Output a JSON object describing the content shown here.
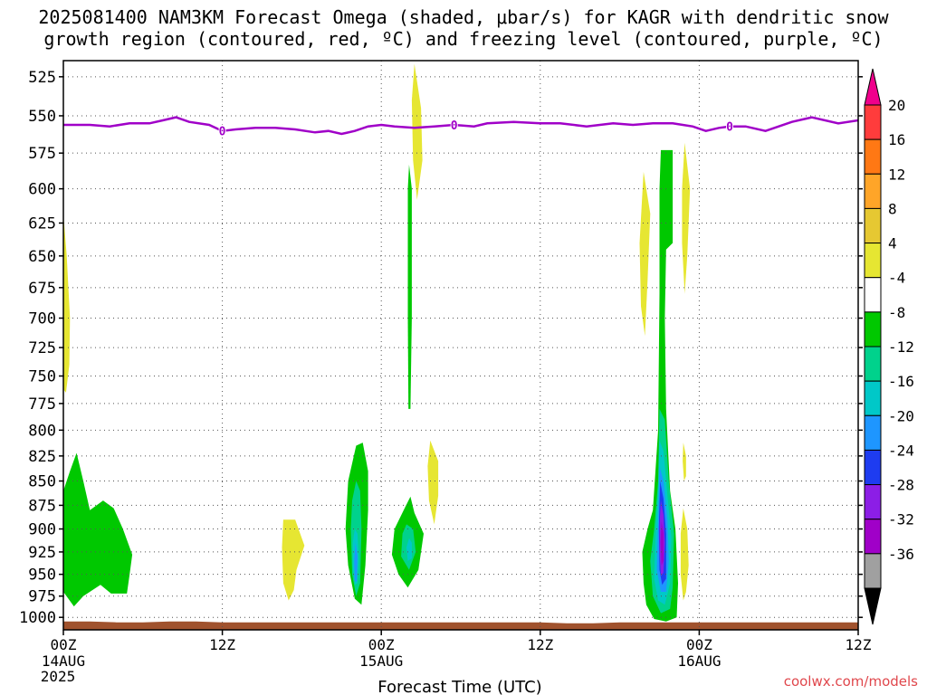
{
  "chart_data": {
    "type": "heatmap",
    "title_line1": "2025081400 NAM3KM Forecast Omega (shaded, μbar/s) for KAGR with dendritic snow",
    "title_line2": "growth region (contoured, red, ºC) and freezing level (contoured, purple, ºC)",
    "xlabel": "Forecast Time (UTC)",
    "x_range_hours": [
      0,
      60
    ],
    "x_ticks": [
      {
        "h": 0,
        "label": "00Z",
        "sub1": "14AUG",
        "sub2": "2025"
      },
      {
        "h": 12,
        "label": "12Z"
      },
      {
        "h": 24,
        "label": "00Z",
        "sub1": "15AUG"
      },
      {
        "h": 36,
        "label": "12Z"
      },
      {
        "h": 48,
        "label": "00Z",
        "sub1": "16AUG"
      },
      {
        "h": 60,
        "label": "12Z"
      }
    ],
    "y_range_hpa": [
      1015,
      515
    ],
    "y_scale": "log",
    "y_ticks": [
      525,
      550,
      575,
      600,
      625,
      650,
      675,
      700,
      725,
      750,
      775,
      800,
      825,
      850,
      875,
      900,
      925,
      950,
      975,
      1000
    ],
    "grid": true,
    "colorbar": {
      "labels": [
        "20",
        "16",
        "12",
        "8",
        "4",
        "-4",
        "-8",
        "-12",
        "-16",
        "-20",
        "-24",
        "-28",
        "-32",
        "-36"
      ],
      "colors": [
        "#f0008c",
        "#ff3c3c",
        "#ff7814",
        "#ffa528",
        "#e6c832",
        "#e6e632",
        "#ffffff",
        "#00c800",
        "#00d28c",
        "#00c8c8",
        "#1e96ff",
        "#1e3cf0",
        "#8c1ee6",
        "#a000c8",
        "#a0a0a0",
        "#000000"
      ],
      "level_map": {
        "neg4": "#00c800",
        "neg8": "#00d28c",
        "neg12": "#00c8c8",
        "neg16": "#1e96ff",
        "neg20": "#1e3cf0",
        "neg24": "#8c1ee6",
        "neg28": "#a000c8",
        "pos4": "#e6e632"
      }
    },
    "freezing_level": {
      "color": "#a000c8",
      "contour_label": "0",
      "label_hours": [
        12.0,
        29.5,
        50.3
      ],
      "hours": [
        0,
        2,
        3.5,
        5,
        6.5,
        7.5,
        8.5,
        9.5,
        11,
        12,
        13,
        14.5,
        16,
        17.5,
        19,
        20,
        21,
        22,
        23,
        24,
        25,
        26.5,
        28,
        29.5,
        31,
        32,
        34,
        36,
        37.5,
        39.5,
        41.5,
        43,
        44.5,
        46,
        47.5,
        48.5,
        49.5,
        50.3,
        51.5,
        53,
        55,
        56.5,
        58.5,
        60
      ],
      "pressure": [
        556,
        556,
        557,
        555,
        555,
        553,
        551,
        554,
        556,
        560,
        559,
        558,
        558,
        559,
        561,
        560,
        562,
        560,
        557,
        556,
        557,
        558,
        557,
        556,
        557,
        555,
        554,
        555,
        555,
        557,
        555,
        556,
        555,
        555,
        557,
        560,
        558,
        557,
        557,
        560,
        554,
        551,
        555,
        553
      ]
    },
    "omega_regions": [
      {
        "level": "pos4",
        "pts": [
          [
            0,
            618
          ],
          [
            0.25,
            650
          ],
          [
            0.5,
            700
          ],
          [
            0.45,
            740
          ],
          [
            0.2,
            765
          ],
          [
            0,
            762
          ]
        ]
      },
      {
        "level": "neg4",
        "pts": [
          [
            0,
            860
          ],
          [
            0.5,
            840
          ],
          [
            1.0,
            822
          ],
          [
            1.5,
            850
          ],
          [
            2.0,
            880
          ],
          [
            3.0,
            870
          ],
          [
            3.8,
            878
          ],
          [
            4.5,
            900
          ],
          [
            5.2,
            928
          ],
          [
            5.0,
            950
          ],
          [
            4.8,
            972
          ],
          [
            3.6,
            972
          ],
          [
            2.8,
            962
          ],
          [
            1.5,
            975
          ],
          [
            0.8,
            987
          ],
          [
            0,
            970
          ]
        ]
      },
      {
        "level": "pos4",
        "pts": [
          [
            16.6,
            890
          ],
          [
            17.5,
            890
          ],
          [
            18.2,
            918
          ],
          [
            17.6,
            945
          ],
          [
            17.4,
            968
          ],
          [
            17.0,
            980
          ],
          [
            16.6,
            960
          ],
          [
            16.5,
            920
          ]
        ]
      },
      {
        "level": "neg4",
        "pts": [
          [
            22.1,
            815
          ],
          [
            22.6,
            812
          ],
          [
            23.0,
            840
          ],
          [
            23.0,
            880
          ],
          [
            22.8,
            940
          ],
          [
            22.5,
            985
          ],
          [
            22.0,
            978
          ],
          [
            21.5,
            940
          ],
          [
            21.3,
            900
          ],
          [
            21.5,
            850
          ]
        ]
      },
      {
        "level": "neg8",
        "pts": [
          [
            22.1,
            850
          ],
          [
            22.4,
            860
          ],
          [
            22.5,
            900
          ],
          [
            22.4,
            960
          ],
          [
            22.1,
            975
          ],
          [
            21.8,
            950
          ],
          [
            21.7,
            900
          ],
          [
            21.8,
            870
          ]
        ]
      },
      {
        "level": "neg12",
        "pts": [
          [
            22.0,
            900
          ],
          [
            22.2,
            905
          ],
          [
            22.3,
            935
          ],
          [
            22.2,
            960
          ],
          [
            22.0,
            962
          ],
          [
            21.85,
            940
          ],
          [
            21.85,
            915
          ]
        ]
      },
      {
        "level": "neg16",
        "pts": [
          [
            22.05,
            915
          ],
          [
            22.2,
            930
          ],
          [
            22.15,
            958
          ],
          [
            22.0,
            958
          ],
          [
            21.95,
            935
          ]
        ]
      },
      {
        "level": "neg4",
        "pts": [
          [
            25.8,
            877
          ],
          [
            26.2,
            866
          ],
          [
            26.5,
            883
          ],
          [
            27.2,
            905
          ],
          [
            26.8,
            945
          ],
          [
            26.0,
            965
          ],
          [
            25.3,
            950
          ],
          [
            24.8,
            928
          ],
          [
            25.0,
            900
          ]
        ]
      },
      {
        "level": "neg8",
        "pts": [
          [
            25.9,
            895
          ],
          [
            26.4,
            900
          ],
          [
            26.6,
            925
          ],
          [
            26.1,
            945
          ],
          [
            25.5,
            930
          ],
          [
            25.6,
            905
          ]
        ]
      },
      {
        "level": "neg12",
        "pts": [
          [
            26.1,
            910
          ],
          [
            26.3,
            915
          ],
          [
            26.3,
            932
          ],
          [
            26.0,
            935
          ],
          [
            25.9,
            920
          ]
        ]
      },
      {
        "level": "pos4",
        "pts": [
          [
            26.5,
            517
          ],
          [
            27.0,
            545
          ],
          [
            27.1,
            580
          ],
          [
            26.7,
            608
          ],
          [
            26.4,
            580
          ],
          [
            26.3,
            540
          ]
        ]
      },
      {
        "level": "neg4",
        "pts": [
          [
            26.1,
            583
          ],
          [
            26.3,
            600
          ],
          [
            26.3,
            700
          ],
          [
            26.2,
            780
          ],
          [
            26.05,
            780
          ],
          [
            26.0,
            700
          ],
          [
            26.0,
            600
          ]
        ]
      },
      {
        "level": "pos4",
        "pts": [
          [
            27.7,
            810
          ],
          [
            28.3,
            830
          ],
          [
            28.3,
            865
          ],
          [
            28.0,
            895
          ],
          [
            27.6,
            870
          ],
          [
            27.5,
            835
          ]
        ]
      },
      {
        "level": "pos4",
        "pts": [
          [
            43.8,
            588
          ],
          [
            44.3,
            618
          ],
          [
            44.1,
            670
          ],
          [
            43.9,
            715
          ],
          [
            43.6,
            690
          ],
          [
            43.5,
            640
          ]
        ]
      },
      {
        "level": "neg4",
        "pts": [
          [
            45.1,
            573
          ],
          [
            46.0,
            573
          ],
          [
            46.0,
            640
          ],
          [
            45.5,
            645
          ],
          [
            45.4,
            700
          ],
          [
            45.5,
            780
          ],
          [
            45.8,
            860
          ],
          [
            46.2,
            900
          ],
          [
            46.4,
            960
          ],
          [
            46.3,
            1000
          ],
          [
            45.5,
            1005
          ],
          [
            44.6,
            1002
          ],
          [
            44.0,
            985
          ],
          [
            43.8,
            960
          ],
          [
            43.7,
            925
          ],
          [
            44.1,
            900
          ],
          [
            44.5,
            880
          ],
          [
            44.9,
            800
          ],
          [
            45.0,
            680
          ],
          [
            45.0,
            600
          ]
        ]
      },
      {
        "level": "neg8",
        "pts": [
          [
            45.0,
            780
          ],
          [
            45.4,
            790
          ],
          [
            45.7,
            850
          ],
          [
            46.1,
            905
          ],
          [
            46.0,
            965
          ],
          [
            45.8,
            990
          ],
          [
            45.1,
            995
          ],
          [
            44.5,
            975
          ],
          [
            44.3,
            935
          ],
          [
            44.6,
            900
          ],
          [
            44.9,
            850
          ]
        ]
      },
      {
        "level": "neg12",
        "pts": [
          [
            45.0,
            810
          ],
          [
            45.3,
            820
          ],
          [
            45.6,
            865
          ],
          [
            45.9,
            910
          ],
          [
            45.8,
            960
          ],
          [
            45.4,
            985
          ],
          [
            44.9,
            980
          ],
          [
            44.6,
            955
          ],
          [
            44.7,
            905
          ],
          [
            44.9,
            860
          ]
        ]
      },
      {
        "level": "neg16",
        "pts": [
          [
            45.0,
            835
          ],
          [
            45.3,
            850
          ],
          [
            45.6,
            890
          ],
          [
            45.7,
            935
          ],
          [
            45.5,
            970
          ],
          [
            45.1,
            970
          ],
          [
            44.8,
            945
          ],
          [
            44.9,
            890
          ]
        ]
      },
      {
        "level": "neg20",
        "pts": [
          [
            45.05,
            850
          ],
          [
            45.3,
            868
          ],
          [
            45.5,
            905
          ],
          [
            45.5,
            955
          ],
          [
            45.2,
            962
          ],
          [
            45.0,
            945
          ],
          [
            44.95,
            900
          ]
        ]
      },
      {
        "level": "neg24",
        "pts": [
          [
            45.1,
            870
          ],
          [
            45.3,
            885
          ],
          [
            45.4,
            915
          ],
          [
            45.3,
            948
          ],
          [
            45.1,
            952
          ],
          [
            45.0,
            925
          ],
          [
            45.0,
            895
          ]
        ]
      },
      {
        "level": "neg28",
        "pts": [
          [
            45.15,
            892
          ],
          [
            45.3,
            905
          ],
          [
            45.3,
            935
          ],
          [
            45.15,
            940
          ],
          [
            45.08,
            915
          ]
        ]
      },
      {
        "level": "pos4",
        "pts": [
          [
            46.9,
            568
          ],
          [
            47.3,
            600
          ],
          [
            47.1,
            650
          ],
          [
            46.9,
            680
          ],
          [
            46.7,
            640
          ],
          [
            46.7,
            600
          ]
        ]
      },
      {
        "level": "pos4",
        "pts": [
          [
            46.8,
            812
          ],
          [
            47.0,
            825
          ],
          [
            47.0,
            845
          ],
          [
            46.85,
            850
          ],
          [
            46.75,
            830
          ]
        ]
      },
      {
        "level": "pos4",
        "pts": [
          [
            46.8,
            878
          ],
          [
            47.1,
            900
          ],
          [
            47.2,
            940
          ],
          [
            47.0,
            970
          ],
          [
            46.8,
            980
          ],
          [
            46.6,
            950
          ],
          [
            46.6,
            905
          ]
        ]
      }
    ],
    "ground": {
      "color": "#a0522d",
      "hours": [
        0,
        2,
        4,
        6,
        8,
        10,
        12,
        14,
        16,
        18,
        20,
        22,
        24,
        26,
        28,
        30,
        32,
        34,
        36,
        38,
        40,
        42,
        44,
        46,
        48,
        50,
        52,
        54,
        56,
        58,
        60
      ],
      "pressure": [
        1005,
        1005,
        1006,
        1006,
        1005,
        1005,
        1006,
        1006,
        1006,
        1006,
        1006,
        1006,
        1006,
        1006,
        1006,
        1006,
        1006,
        1006,
        1006,
        1007,
        1007,
        1006,
        1006,
        1006,
        1006,
        1006,
        1006,
        1006,
        1006,
        1006,
        1006
      ]
    }
  },
  "watermark": "coolwx.com/models"
}
